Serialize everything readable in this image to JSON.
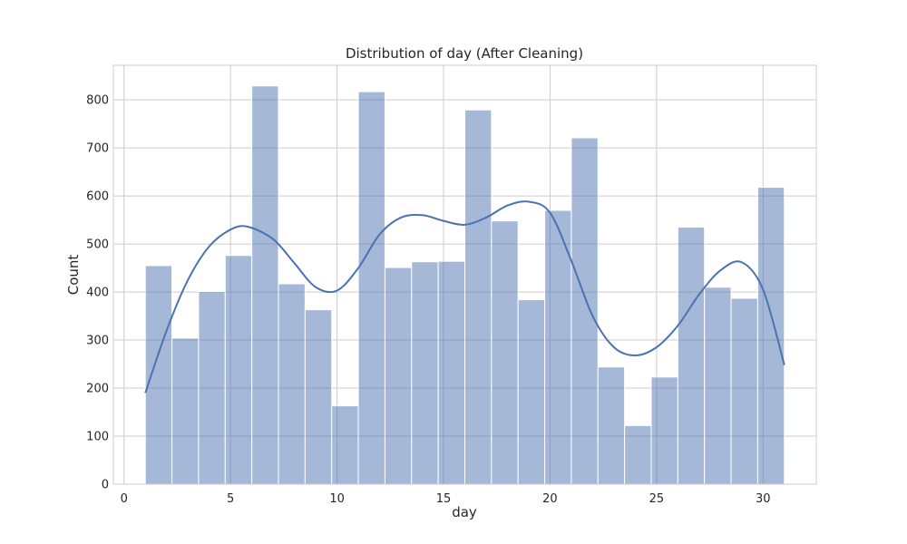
{
  "chart_data": {
    "type": "bar",
    "title": "Distribution of day (After Cleaning)",
    "xlabel": "day",
    "ylabel": "Count",
    "xlim": [
      -0.5,
      32.5
    ],
    "ylim": [
      0,
      872
    ],
    "xticks": [
      0,
      5,
      10,
      15,
      20,
      25,
      30
    ],
    "yticks": [
      0,
      100,
      200,
      300,
      400,
      500,
      600,
      700,
      800
    ],
    "grid": true,
    "bar_color": "#4c72b0",
    "bins": [
      {
        "x0": 1.0,
        "x1": 2.25,
        "value": 455
      },
      {
        "x0": 2.25,
        "x1": 3.5,
        "value": 304
      },
      {
        "x0": 3.5,
        "x1": 4.75,
        "value": 401
      },
      {
        "x0": 4.75,
        "x1": 6.0,
        "value": 476
      },
      {
        "x0": 6.0,
        "x1": 7.25,
        "value": 829
      },
      {
        "x0": 7.25,
        "x1": 8.5,
        "value": 417
      },
      {
        "x0": 8.5,
        "x1": 9.75,
        "value": 363
      },
      {
        "x0": 9.75,
        "x1": 11.0,
        "value": 163
      },
      {
        "x0": 11.0,
        "x1": 12.25,
        "value": 817
      },
      {
        "x0": 12.25,
        "x1": 13.5,
        "value": 451
      },
      {
        "x0": 13.5,
        "x1": 14.75,
        "value": 463
      },
      {
        "x0": 14.75,
        "x1": 16.0,
        "value": 464
      },
      {
        "x0": 16.0,
        "x1": 17.25,
        "value": 779
      },
      {
        "x0": 17.25,
        "x1": 18.5,
        "value": 548
      },
      {
        "x0": 18.5,
        "x1": 19.75,
        "value": 384
      },
      {
        "x0": 19.75,
        "x1": 21.0,
        "value": 570
      },
      {
        "x0": 21.0,
        "x1": 22.25,
        "value": 721
      },
      {
        "x0": 22.25,
        "x1": 23.5,
        "value": 244
      },
      {
        "x0": 23.5,
        "x1": 24.75,
        "value": 122
      },
      {
        "x0": 24.75,
        "x1": 26.0,
        "value": 223
      },
      {
        "x0": 26.0,
        "x1": 27.25,
        "value": 535
      },
      {
        "x0": 27.25,
        "x1": 28.5,
        "value": 410
      },
      {
        "x0": 28.5,
        "x1": 29.75,
        "value": 387
      },
      {
        "x0": 29.75,
        "x1": 31.0,
        "value": 618
      }
    ],
    "kde": {
      "x": [
        1,
        2,
        3,
        4,
        5,
        5.8,
        7,
        8,
        9,
        10,
        11,
        12,
        13,
        14,
        15,
        16,
        17,
        18,
        19,
        20,
        21,
        22,
        23,
        24,
        25,
        26,
        27,
        28,
        29,
        30,
        31
      ],
      "y": [
        190,
        320,
        425,
        495,
        530,
        536,
        510,
        460,
        410,
        403,
        450,
        520,
        555,
        560,
        548,
        540,
        555,
        580,
        588,
        565,
        465,
        350,
        285,
        268,
        285,
        330,
        395,
        445,
        462,
        405,
        248
      ]
    }
  }
}
